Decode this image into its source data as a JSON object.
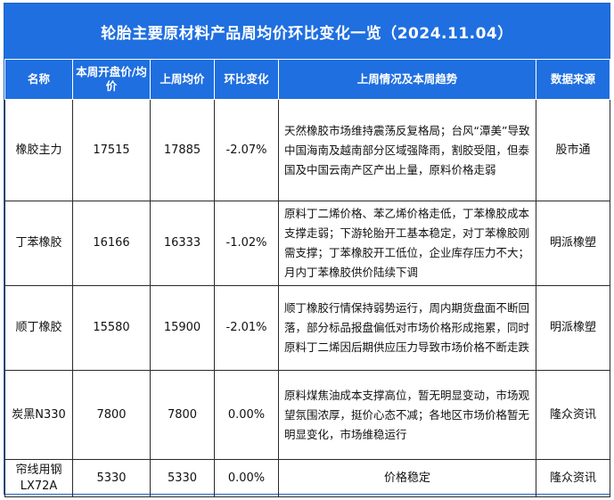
{
  "title": "轮胎主要原材料产品周均价环比变化一览（2024.11.04）",
  "headers": {
    "name": "名称",
    "open_price": "本周开盘价/均价",
    "last_avg": "上周均价",
    "change": "环比变化",
    "trend": "上周情况及本周趋势",
    "source": "数据来源"
  },
  "rows": [
    {
      "name": "橡胶主力",
      "open_price": "17515",
      "last_avg": "17885",
      "change": "-2.07%",
      "trend": "天然橡胶市场维持震荡反复格局；台风“潭美”导致中国海南及越南部分区域强降雨，割胶受阻，但泰国及中国云南产区产出上量，原料价格走弱",
      "source": "股市通"
    },
    {
      "name": "丁苯橡胶",
      "open_price": "16166",
      "last_avg": "16333",
      "change": "-1.02%",
      "trend": "原料丁二烯价格、苯乙烯价格走低，丁苯橡胶成本支撑走弱；下游轮胎开工基本稳定，对丁苯橡胶刚需支撑；丁苯橡胶开工低位，企业库存压力不大；月内丁苯橡胶供价陆续下调",
      "source": "明派橡塑"
    },
    {
      "name": "顺丁橡胶",
      "open_price": "15580",
      "last_avg": "15900",
      "change": "-2.01%",
      "trend": "顺丁橡胶行情保持弱势运行，周内期货盘面不断回落，部分标品报盘偏低对市场价格形成拖累，同时原料丁二烯因后期供应压力导致市场价格不断走跌",
      "source": "明派橡塑"
    },
    {
      "name": "炭黑N330",
      "open_price": "7800",
      "last_avg": "7800",
      "change": "0.00%",
      "trend": "原料煤焦油成本支撑高位，暂无明显变动，市场观望氛围浓厚，挺价心态不减；各地区市场价格暂无明显变化，市场维稳运行",
      "source": "隆众资讯"
    },
    {
      "name": "帘线用钢LX72A",
      "open_price": "5330",
      "last_avg": "5330",
      "change": "0.00%",
      "trend": "价格稳定",
      "source": "隆众资讯"
    }
  ]
}
